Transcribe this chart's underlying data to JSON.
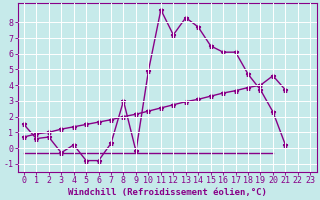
{
  "x_main": [
    0,
    1,
    2,
    3,
    4,
    5,
    6,
    7,
    8,
    9,
    10,
    11,
    12,
    13,
    14,
    15,
    16,
    17,
    18,
    19,
    20,
    21
  ],
  "y_main": [
    1.5,
    0.6,
    0.7,
    -0.3,
    0.2,
    -0.8,
    -0.8,
    0.3,
    3.0,
    -0.2,
    4.9,
    8.8,
    7.2,
    8.3,
    7.7,
    6.5,
    6.1,
    6.1,
    4.7,
    3.7,
    2.3,
    0.2
  ],
  "x_flat": [
    0,
    1,
    2,
    3,
    4,
    5,
    6,
    7,
    8,
    9,
    10,
    11,
    12,
    13,
    14,
    15,
    16,
    17,
    18,
    19,
    20
  ],
  "y_flat": [
    -0.3,
    -0.3,
    -0.3,
    -0.3,
    -0.3,
    -0.3,
    -0.3,
    -0.3,
    -0.3,
    -0.3,
    -0.3,
    -0.3,
    -0.3,
    -0.3,
    -0.3,
    -0.3,
    -0.3,
    -0.3,
    -0.3,
    -0.3,
    -0.3
  ],
  "x_rise": [
    0,
    1,
    2,
    3,
    4,
    5,
    6,
    7,
    8,
    9,
    10,
    11,
    12,
    13,
    14,
    15,
    16,
    17,
    18,
    19,
    20,
    21
  ],
  "y_rise": [
    0.7,
    0.9,
    1.0,
    1.2,
    1.35,
    1.5,
    1.65,
    1.8,
    2.0,
    2.15,
    2.35,
    2.55,
    2.75,
    2.95,
    3.1,
    3.3,
    3.5,
    3.65,
    3.85,
    4.0,
    4.6,
    3.7
  ],
  "bg_color": "#c6eaea",
  "line_color": "#880088",
  "grid_color": "#ffffff",
  "xlabel": "Windchill (Refroidissement éolien,°C)",
  "xlim_left": -0.5,
  "xlim_right": 23.5,
  "ylim": [
    -1.5,
    9.2
  ],
  "yticks": [
    -1,
    0,
    1,
    2,
    3,
    4,
    5,
    6,
    7,
    8
  ],
  "xticks": [
    0,
    1,
    2,
    3,
    4,
    5,
    6,
    7,
    8,
    9,
    10,
    11,
    12,
    13,
    14,
    15,
    16,
    17,
    18,
    19,
    20,
    21,
    22,
    23
  ],
  "xlabel_fontsize": 6.5,
  "tick_fontsize": 6,
  "line_width": 1.0,
  "marker": "*",
  "marker_size": 3.5
}
